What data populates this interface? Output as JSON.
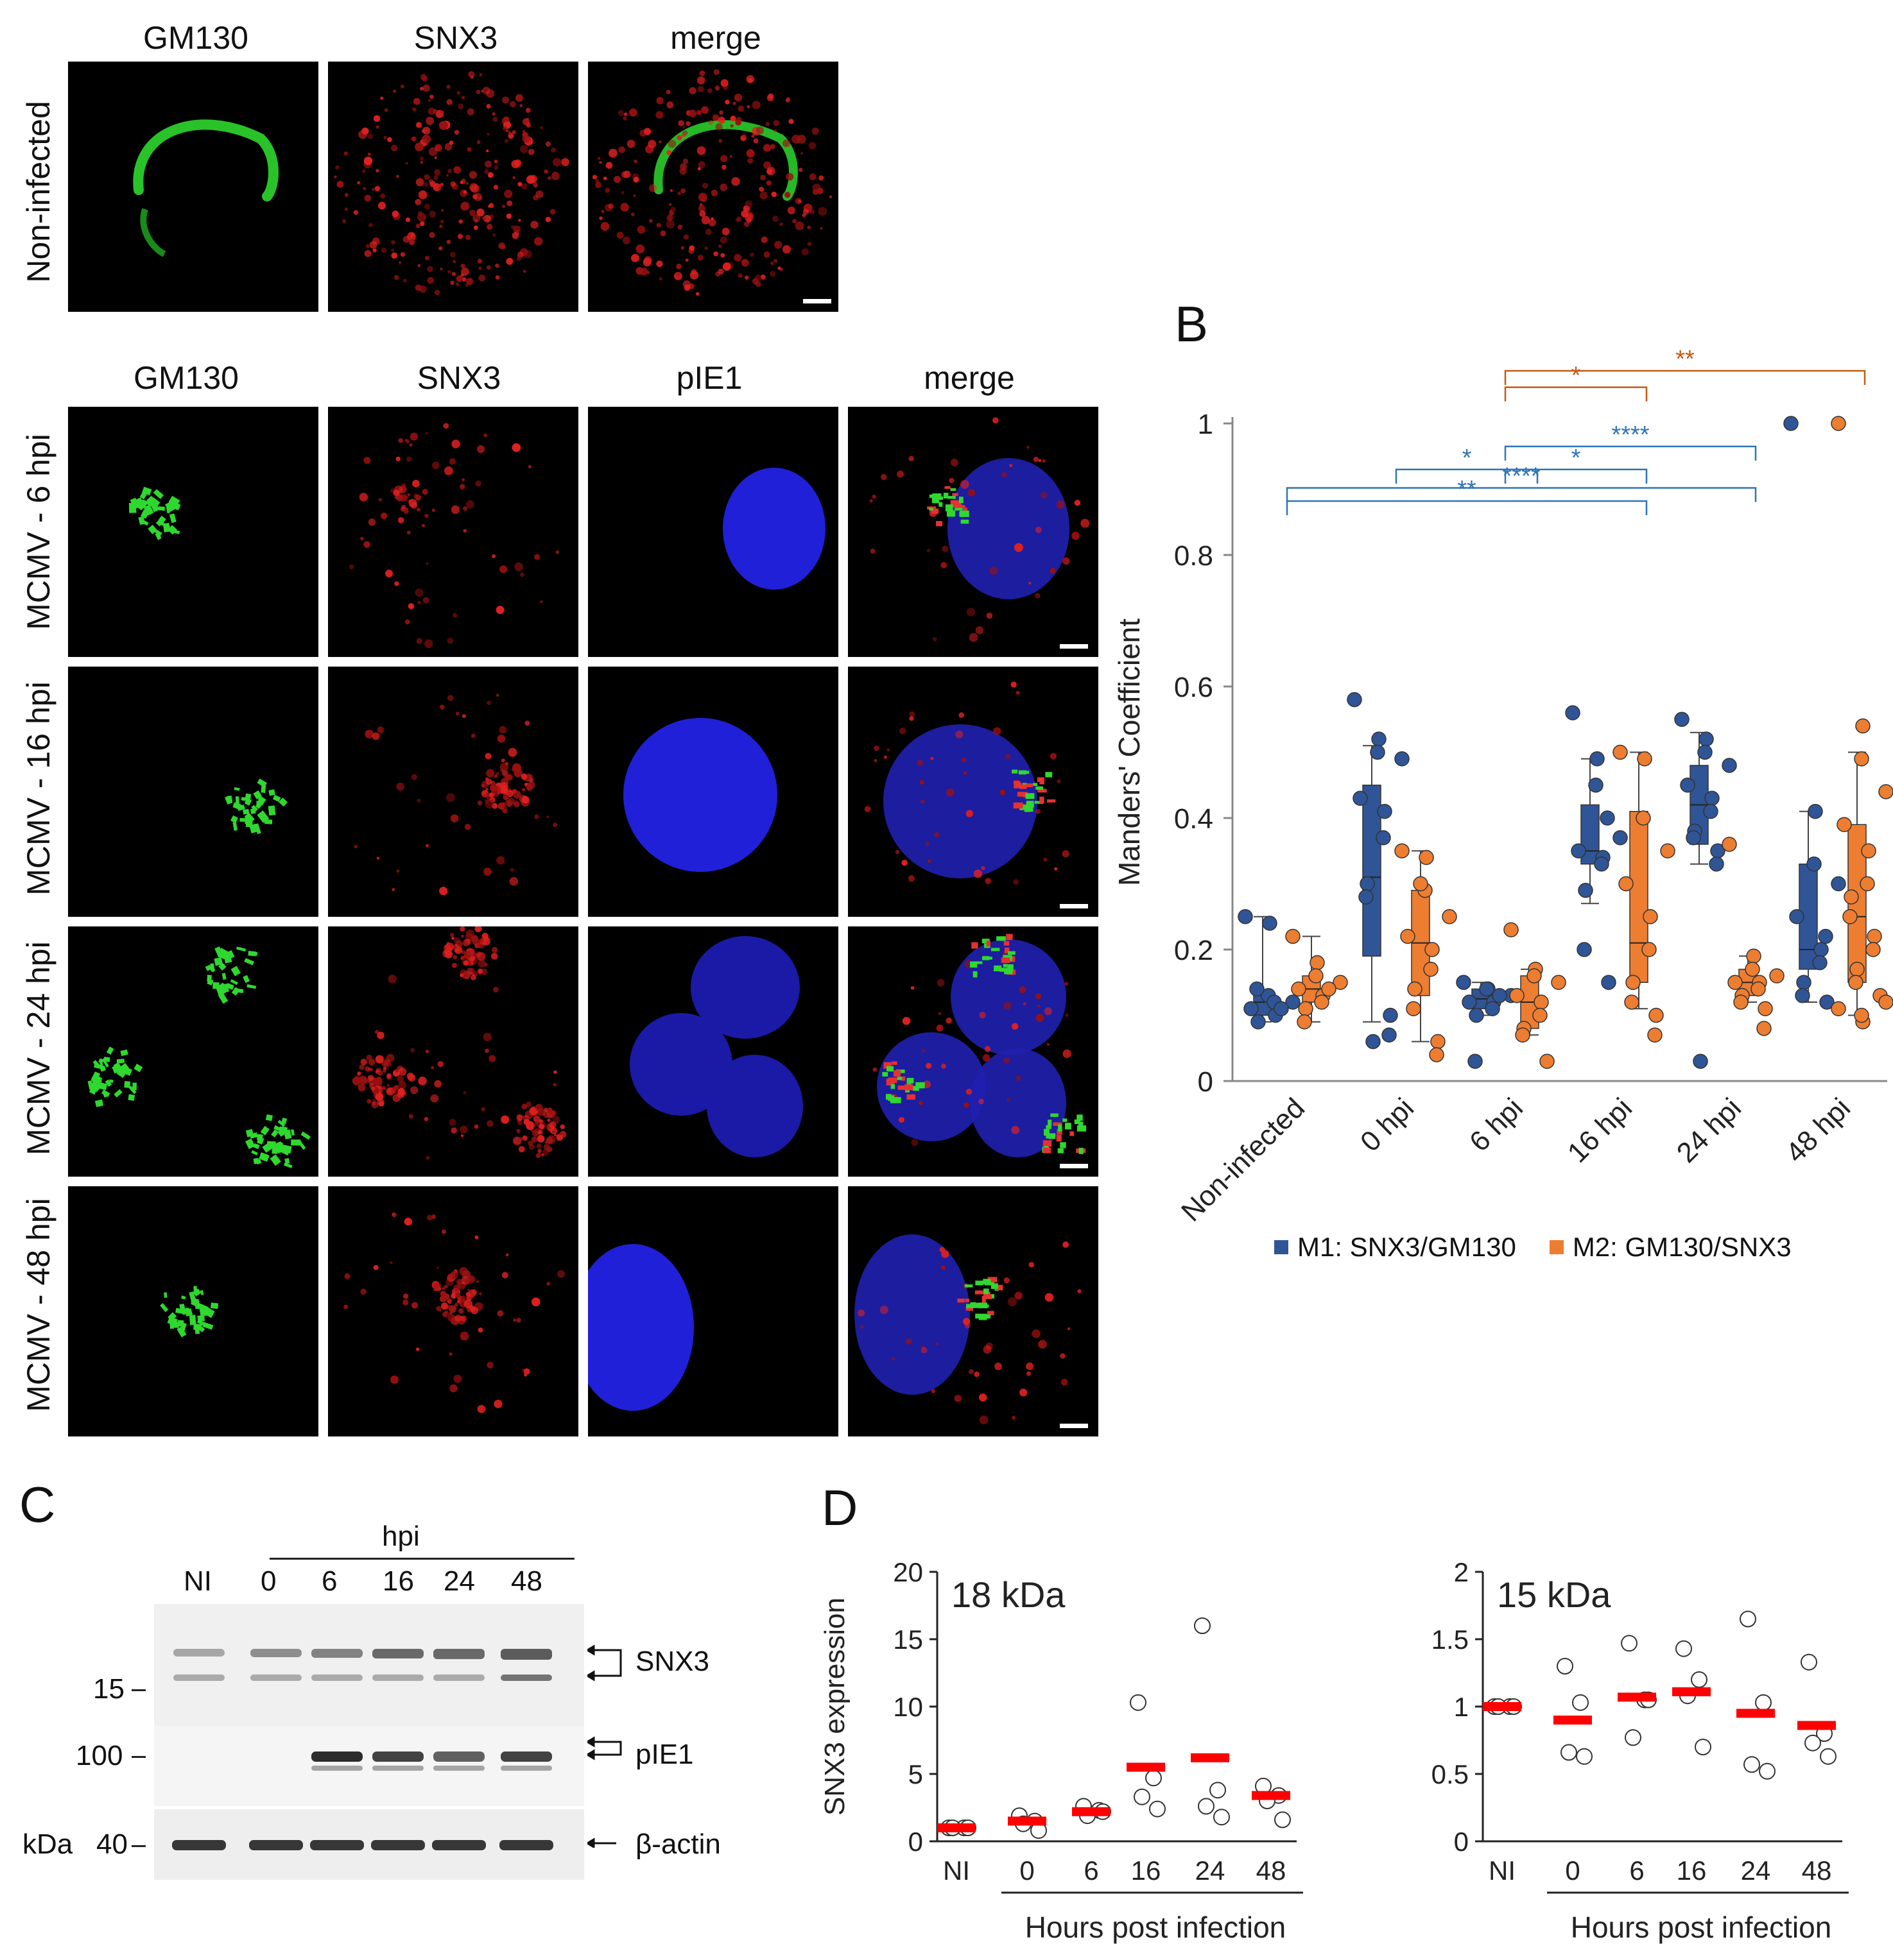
{
  "panel_a": {
    "top_headers": [
      "GM130",
      "SNX3",
      "merge"
    ],
    "top_row_label": "Non-infected",
    "bottom_headers": [
      "GM130",
      "SNX3",
      "pIE1",
      "merge"
    ],
    "bottom_row_labels": [
      "MCMV - 6 hpi",
      "MCMV - 16 hpi",
      "MCMV - 24 hpi",
      "MCMV - 48 hpi"
    ]
  },
  "panel_b": {
    "letter": "B",
    "legend": [
      {
        "label": "M1: SNX3/GM130",
        "color": "#2f5597"
      },
      {
        "label": "M2: GM130/SNX3",
        "color": "#ed7d31"
      }
    ]
  },
  "panel_c": {
    "letter": "C",
    "hpi_label": "hpi",
    "lane_labels": [
      "NI",
      "0",
      "6",
      "16",
      "24",
      "48"
    ],
    "mw_markers": [
      "15",
      "100",
      "40"
    ],
    "kda_label": "kDa",
    "band_labels": [
      "SNX3",
      "pIE1",
      "β-actin"
    ]
  },
  "panel_d": {
    "letter": "D"
  },
  "chart_data": [
    {
      "type": "box+scatter",
      "ylabel": "Manders' Coefficient",
      "ylim": [
        0,
        1
      ],
      "yticks": [
        "0",
        "0.2",
        "0.4",
        "0.6",
        "0.8",
        "1"
      ],
      "categories": [
        "Non-infected",
        "0 hpi",
        "6 hpi",
        "16 hpi",
        "24 hpi",
        "48 hpi"
      ],
      "grid": false,
      "legend_position": "bottom",
      "series": [
        {
          "name": "M1: SNX3/GM130",
          "color": "#2f5597",
          "boxes": [
            {
              "min": 0.09,
              "q1": 0.1,
              "median": 0.12,
              "q3": 0.13,
              "max": 0.25
            },
            {
              "min": 0.09,
              "q1": 0.19,
              "median": 0.31,
              "q3": 0.45,
              "max": 0.51
            },
            {
              "min": 0.1,
              "q1": 0.11,
              "median": 0.125,
              "q3": 0.14,
              "max": 0.15
            },
            {
              "min": 0.27,
              "q1": 0.33,
              "median": 0.35,
              "q3": 0.42,
              "max": 0.49
            },
            {
              "min": 0.33,
              "q1": 0.36,
              "median": 0.42,
              "q3": 0.48,
              "max": 0.53
            },
            {
              "min": 0.12,
              "q1": 0.17,
              "median": 0.2,
              "q3": 0.33,
              "max": 0.41
            }
          ],
          "points": [
            [
              0.25,
              0.24,
              0.13,
              0.12,
              0.11,
              0.1,
              0.12,
              0.09,
              0.14,
              0.11
            ],
            [
              0.58,
              0.52,
              0.5,
              0.49,
              0.43,
              0.41,
              0.37,
              0.3,
              0.28,
              0.1,
              0.07,
              0.06
            ],
            [
              0.15,
              0.14,
              0.14,
              0.13,
              0.12,
              0.12,
              0.11,
              0.1,
              0.03,
              0.13
            ],
            [
              0.56,
              0.49,
              0.45,
              0.37,
              0.35,
              0.34,
              0.33,
              0.29,
              0.2,
              0.15,
              0.4
            ],
            [
              0.55,
              0.52,
              0.5,
              0.48,
              0.45,
              0.43,
              0.41,
              0.38,
              0.37,
              0.35,
              0.33,
              0.03
            ],
            [
              1.0,
              0.41,
              0.33,
              0.3,
              0.25,
              0.2,
              0.18,
              0.15,
              0.13,
              0.12,
              0.22
            ]
          ]
        },
        {
          "name": "M2: GM130/SNX3",
          "color": "#ed7d31",
          "boxes": [
            {
              "min": 0.09,
              "q1": 0.12,
              "median": 0.14,
              "q3": 0.16,
              "max": 0.22
            },
            {
              "min": 0.06,
              "q1": 0.13,
              "median": 0.21,
              "q3": 0.29,
              "max": 0.35
            },
            {
              "min": 0.07,
              "q1": 0.08,
              "median": 0.12,
              "q3": 0.16,
              "max": 0.17
            },
            {
              "min": 0.11,
              "q1": 0.15,
              "median": 0.21,
              "q3": 0.41,
              "max": 0.5
            },
            {
              "min": 0.12,
              "q1": 0.13,
              "median": 0.15,
              "q3": 0.17,
              "max": 0.19
            },
            {
              "min": 0.1,
              "q1": 0.15,
              "median": 0.25,
              "q3": 0.39,
              "max": 0.5
            }
          ],
          "points": [
            [
              0.22,
              0.18,
              0.16,
              0.15,
              0.14,
              0.13,
              0.12,
              0.11,
              0.09,
              0.14
            ],
            [
              0.35,
              0.34,
              0.29,
              0.25,
              0.22,
              0.2,
              0.17,
              0.14,
              0.11,
              0.06,
              0.04,
              0.3
            ],
            [
              0.23,
              0.17,
              0.16,
              0.15,
              0.13,
              0.12,
              0.1,
              0.08,
              0.07,
              0.03
            ],
            [
              0.5,
              0.49,
              0.4,
              0.35,
              0.3,
              0.25,
              0.2,
              0.15,
              0.12,
              0.1,
              0.07
            ],
            [
              0.36,
              0.19,
              0.17,
              0.16,
              0.15,
              0.15,
              0.14,
              0.13,
              0.12,
              0.11,
              0.08
            ],
            [
              1.0,
              0.54,
              0.49,
              0.44,
              0.39,
              0.35,
              0.3,
              0.28,
              0.25,
              0.22,
              0.2,
              0.17,
              0.15,
              0.13,
              0.11,
              0.09,
              0.1,
              0.12
            ]
          ]
        }
      ],
      "significance": [
        {
          "from": "6 hpi",
          "to": "48 hpi",
          "label": "**",
          "color": "#c55a11"
        },
        {
          "from": "6 hpi",
          "to": "16 hpi",
          "label": "*",
          "color": "#c55a11"
        },
        {
          "from": "6 hpi",
          "to": "24 hpi",
          "label": "****",
          "color": "#2e75b6"
        },
        {
          "from": "0 hpi",
          "to": "6 hpi",
          "label": "*",
          "color": "#2e75b6"
        },
        {
          "from": "6 hpi",
          "to": "16 hpi",
          "label": "*",
          "color": "#2e75b6"
        },
        {
          "from": "Non-infected",
          "to": "24 hpi",
          "label": "****",
          "color": "#2e75b6"
        },
        {
          "from": "Non-infected",
          "to": "16 hpi",
          "label": "**",
          "color": "#2e75b6"
        }
      ]
    },
    {
      "type": "scatter",
      "title": "18 kDa",
      "ylabel": "SNX3 expression",
      "xlabel": "Hours post infection",
      "categories": [
        "NI",
        "0",
        "6",
        "16",
        "24",
        "48"
      ],
      "ylim": [
        0,
        20
      ],
      "yticks": [
        "0",
        "5",
        "10",
        "15",
        "20"
      ],
      "grid": false,
      "points": [
        [
          1,
          1,
          1,
          1
        ],
        [
          1.9,
          1.5,
          1.3,
          0.8
        ],
        [
          2.6,
          2.3,
          1.9,
          2.2
        ],
        [
          10.3,
          4.7,
          3.3,
          2.4
        ],
        [
          16,
          3.8,
          2.6,
          1.8
        ],
        [
          4.1,
          3.4,
          3.0,
          1.6
        ]
      ],
      "means": [
        1,
        1.5,
        2.2,
        5.5,
        6.2,
        3.4
      ],
      "mean_color": "#ff0000"
    },
    {
      "type": "scatter",
      "title": "15 kDa",
      "ylabel": "",
      "xlabel": "Hours post infection",
      "categories": [
        "NI",
        "0",
        "6",
        "16",
        "24",
        "48"
      ],
      "ylim": [
        0,
        2
      ],
      "yticks": [
        "0",
        "0.5",
        "1",
        "1.5",
        "2"
      ],
      "grid": false,
      "points": [
        [
          1,
          1,
          1,
          1
        ],
        [
          1.3,
          1.03,
          0.66,
          0.63
        ],
        [
          1.47,
          1.05,
          0.77,
          1.05
        ],
        [
          1.43,
          1.2,
          1.08,
          0.7
        ],
        [
          1.65,
          1.03,
          0.57,
          0.52
        ],
        [
          1.33,
          0.8,
          0.73,
          0.63
        ]
      ],
      "means": [
        1,
        0.9,
        1.07,
        1.11,
        0.95,
        0.86
      ],
      "mean_color": "#ff0000"
    }
  ]
}
